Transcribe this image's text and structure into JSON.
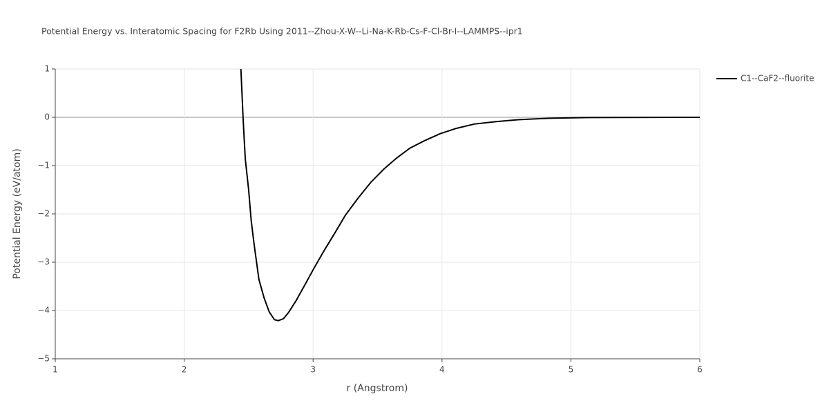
{
  "chart_data": {
    "type": "line",
    "title": "Potential Energy vs. Interatomic Spacing for F2Rb Using 2011--Zhou-X-W--Li-Na-K-Rb-Cs-F-Cl-Br-I--LAMMPS--ipr1",
    "x_label": "r (Angstrom)",
    "y_label": "Potential Energy (eV/atom)",
    "x": [
      2.44,
      2.458,
      2.474,
      2.5,
      2.52,
      2.543,
      2.58,
      2.62,
      2.66,
      2.7,
      2.73,
      2.77,
      2.81,
      2.865,
      2.93,
      3.01,
      3.09,
      3.17,
      3.25,
      3.35,
      3.45,
      3.55,
      3.65,
      3.75,
      3.86,
      3.985,
      4.11,
      4.25,
      4.42,
      4.59,
      4.83,
      5.13,
      6.0
    ],
    "series": [
      {
        "name": "C1--CaF2--fluorite",
        "color": "#000000",
        "values": [
          1.0,
          -0.07,
          -0.86,
          -1.5,
          -2.14,
          -2.64,
          -3.36,
          -3.74,
          -4.03,
          -4.19,
          -4.21,
          -4.17,
          -4.04,
          -3.81,
          -3.5,
          -3.11,
          -2.74,
          -2.39,
          -2.03,
          -1.67,
          -1.34,
          -1.07,
          -0.84,
          -0.64,
          -0.49,
          -0.34,
          -0.23,
          -0.14,
          -0.09,
          -0.05,
          -0.02,
          -0.005,
          0
        ]
      }
    ],
    "xlim": [
      1,
      6
    ],
    "xticks": [
      1,
      2,
      3,
      4,
      5,
      6
    ],
    "ylim": [
      -5,
      1
    ],
    "yticks": [
      {
        "value": -5,
        "label": "−5"
      },
      {
        "value": -4,
        "label": "−4"
      },
      {
        "value": -3,
        "label": "−3"
      },
      {
        "value": -2,
        "label": "−2"
      },
      {
        "value": -1,
        "label": "−1"
      },
      0,
      1
    ],
    "grid": true,
    "legend": "right"
  }
}
